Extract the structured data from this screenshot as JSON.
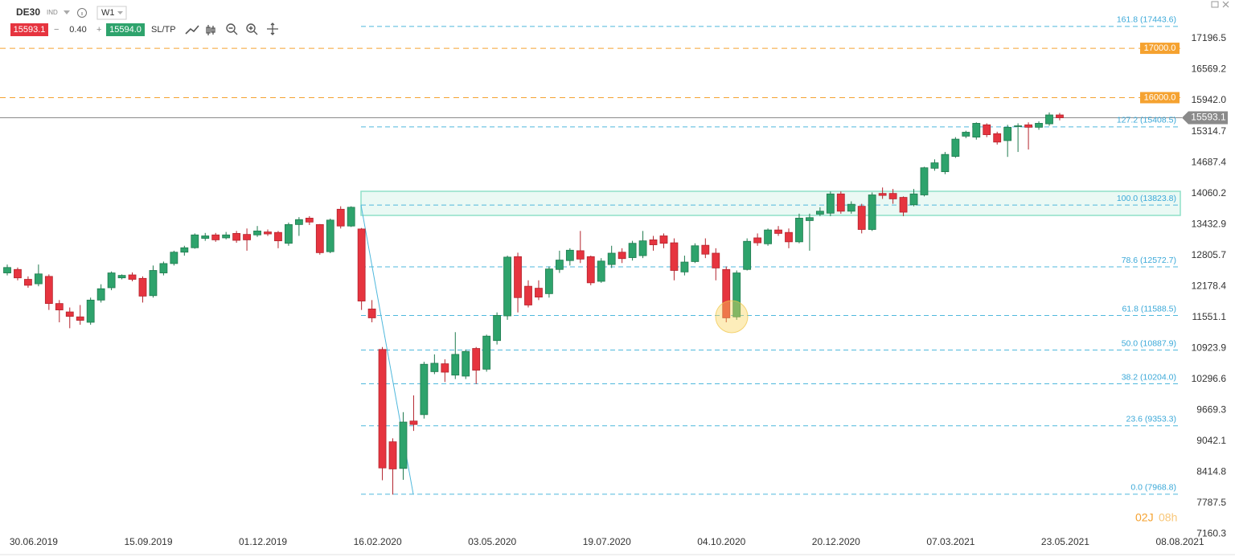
{
  "toolbar": {
    "symbol": "DE30",
    "market": "IND",
    "timeframe": "W1",
    "bid": "15593.1",
    "minus": "−",
    "spread": "0.40",
    "plus": "+",
    "ask": "15594.0",
    "sltp": "SL/TP"
  },
  "chart_data": {
    "type": "candlestick",
    "categories": [
      null,
      null,
      "30.06.2019",
      null,
      null,
      null,
      null,
      null,
      null,
      null,
      null,
      null,
      null,
      "15.09.2019",
      null,
      null,
      null,
      null,
      null,
      null,
      null,
      null,
      null,
      null,
      "01.12.2019",
      null,
      null,
      null,
      null,
      null,
      null,
      null,
      null,
      null,
      null,
      "16.02.2020",
      null,
      null,
      null,
      null,
      null,
      null,
      null,
      null,
      null,
      null,
      "03.05.2020",
      null,
      null,
      null,
      null,
      null,
      null,
      null,
      null,
      null,
      null,
      "19.07.2020",
      null,
      null,
      null,
      null,
      null,
      null,
      null,
      null,
      null,
      null,
      "04.10.2020",
      null,
      null,
      null,
      null,
      null,
      null,
      null,
      null,
      null,
      null,
      "20.12.2020",
      null,
      null,
      null,
      null,
      null,
      null,
      null,
      null,
      null,
      null,
      "07.03.2021",
      null,
      null,
      null,
      null,
      null,
      null,
      null,
      null,
      null,
      null,
      "23.05.2021",
      null,
      null,
      null,
      null,
      null,
      null,
      null,
      null,
      null,
      null,
      "08.08.2021"
    ],
    "open": [
      12450,
      12520,
      12320,
      12230,
      12380,
      11830,
      11660,
      11560,
      11450,
      11900,
      12150,
      12350,
      12410,
      12340,
      11990,
      12450,
      12640,
      12870,
      12960,
      13150,
      13220,
      13160,
      13250,
      13230,
      13220,
      13280,
      13270,
      13050,
      13430,
      13560,
      13430,
      12880,
      13740,
      13400,
      13340,
      11720,
      10900,
      9030,
      8490,
      9450,
      9580,
      10450,
      10610,
      10380,
      10360,
      10920,
      10500,
      11080,
      11580,
      12780,
      12180,
      12140,
      12030,
      12520,
      12700,
      12900,
      12780,
      12280,
      12620,
      12870,
      12760,
      12800,
      13120,
      13200,
      13060,
      12470,
      12680,
      13010,
      12850,
      12520,
      11560,
      12520,
      13160,
      13040,
      13320,
      13270,
      13080,
      13510,
      13640,
      13660,
      14050,
      13700,
      13800,
      13330,
      14060,
      14060,
      13980,
      13830,
      14030,
      14570,
      14500,
      14810,
      15220,
      15200,
      15450,
      15270,
      15130,
      15420,
      15450,
      15400,
      15470,
      15650,
      null,
      null,
      null,
      null,
      null,
      null,
      null,
      null,
      null,
      null,
      null
    ],
    "high": [
      12620,
      12560,
      12380,
      12620,
      12420,
      11900,
      11750,
      11800,
      11950,
      12220,
      12480,
      12420,
      12460,
      12380,
      12600,
      12680,
      12900,
      13000,
      13250,
      13260,
      13260,
      13280,
      13300,
      13350,
      13400,
      13330,
      13300,
      13470,
      13580,
      13600,
      13440,
      13550,
      13800,
      13800,
      13360,
      11900,
      10950,
      9100,
      9630,
      9970,
      10650,
      10800,
      10700,
      11250,
      10900,
      10950,
      11200,
      11650,
      12800,
      12860,
      12300,
      12300,
      12580,
      12900,
      12950,
      13300,
      12800,
      12750,
      13000,
      12950,
      13100,
      13300,
      13200,
      13250,
      13150,
      12800,
      13050,
      13150,
      12950,
      12580,
      12500,
      13150,
      13250,
      13350,
      13400,
      13350,
      13650,
      13650,
      13780,
      14100,
      14100,
      13900,
      13850,
      14080,
      14180,
      14150,
      14000,
      14150,
      14600,
      14750,
      14900,
      15200,
      15330,
      15500,
      15480,
      15310,
      15450,
      15480,
      15500,
      15520,
      15700,
      15690,
      null,
      null,
      null,
      null,
      null,
      null,
      null,
      null,
      null,
      null,
      null
    ],
    "low": [
      12400,
      12300,
      12150,
      12180,
      11700,
      11450,
      11330,
      11400,
      11400,
      11850,
      12100,
      12320,
      12280,
      11850,
      11950,
      12400,
      12600,
      12800,
      12940,
      13100,
      13080,
      13130,
      13060,
      12900,
      13180,
      13200,
      12950,
      13000,
      13200,
      13420,
      12820,
      12850,
      13350,
      13380,
      11700,
      11450,
      8250,
      7960,
      8260,
      9250,
      9500,
      10400,
      10240,
      10300,
      10300,
      10200,
      10450,
      11000,
      11500,
      11650,
      11750,
      11900,
      11950,
      12450,
      12600,
      12650,
      12200,
      12250,
      12550,
      12650,
      12700,
      12750,
      12900,
      12950,
      12300,
      12400,
      12650,
      12750,
      12300,
      11450,
      11500,
      12500,
      13000,
      13000,
      13200,
      12950,
      13050,
      12900,
      13600,
      13600,
      13650,
      13650,
      13250,
      13300,
      13950,
      13850,
      13600,
      13800,
      14000,
      14520,
      14450,
      14780,
      15180,
      15150,
      15200,
      15050,
      14800,
      14900,
      14950,
      15350,
      15430,
      15540,
      null,
      null,
      null,
      null,
      null,
      null,
      null,
      null,
      null,
      null,
      null
    ],
    "close": [
      12560,
      12350,
      12200,
      12430,
      11830,
      11700,
      11570,
      11490,
      11900,
      12130,
      12450,
      12400,
      12320,
      11980,
      12500,
      12640,
      12870,
      12960,
      13220,
      13200,
      13120,
      13220,
      13110,
      13120,
      13300,
      13240,
      13100,
      13430,
      13530,
      13480,
      12860,
      13520,
      13400,
      13780,
      11880,
      11540,
      8500,
      8480,
      9430,
      9380,
      10600,
      10620,
      10440,
      10800,
      10860,
      10480,
      11170,
      11590,
      12770,
      11950,
      11800,
      11960,
      12530,
      12710,
      12910,
      12730,
      12250,
      12690,
      12850,
      12740,
      13050,
      13100,
      13020,
      13050,
      12500,
      12670,
      13000,
      12830,
      12550,
      11540,
      12450,
      13090,
      13060,
      13320,
      13250,
      13080,
      13560,
      13570,
      13700,
      14050,
      13700,
      13840,
      13330,
      14030,
      14020,
      13950,
      13680,
      14050,
      14580,
      14680,
      14850,
      15160,
      15300,
      15480,
      15250,
      15100,
      15400,
      15430,
      15400,
      15480,
      15650,
      15593.1,
      null,
      null,
      null,
      null,
      null,
      null,
      null,
      null,
      null,
      null,
      null
    ],
    "up_color": "#2ea36c",
    "down_color": "#e6343f",
    "ylim": [
      7103.1,
      17977.9
    ],
    "yticks": [
      17196.5,
      16569.2,
      {
        "value": 15942.0,
        "label": "15942.0"
      },
      15314.7,
      14687.4,
      14060.2,
      13432.9,
      12805.7,
      12178.4,
      11551.1,
      10923.9,
      10296.6,
      9669.3,
      9042.1,
      8414.8,
      7787.5,
      7160.3
    ],
    "fib_levels": [
      {
        "value": 17443.6,
        "label": "161.8 (17443.6)"
      },
      {
        "value": 15408.5,
        "label": "127.2 (15408.5)"
      },
      {
        "value": 13823.8,
        "label": "100.0 (13823.8)"
      },
      {
        "value": 12572.7,
        "label": "78.6 (12572.7)"
      },
      {
        "value": 11588.5,
        "label": "61.8 (11588.5)"
      },
      {
        "value": 10887.9,
        "label": "50.0 (10887.9)"
      },
      {
        "value": 10204.0,
        "label": "38.2 (10204.0)"
      },
      {
        "value": 9353.3,
        "label": "23.6 (9353.3)"
      },
      {
        "value": 7968.8,
        "label": "0.0 (7968.8)"
      }
    ],
    "price_alerts": [
      {
        "value": 17000.0,
        "label": "17000.0"
      },
      {
        "value": 16000.0,
        "label": "16000.0"
      }
    ],
    "last_price": 15593.1,
    "countdown": [
      "02J",
      "08h"
    ]
  }
}
